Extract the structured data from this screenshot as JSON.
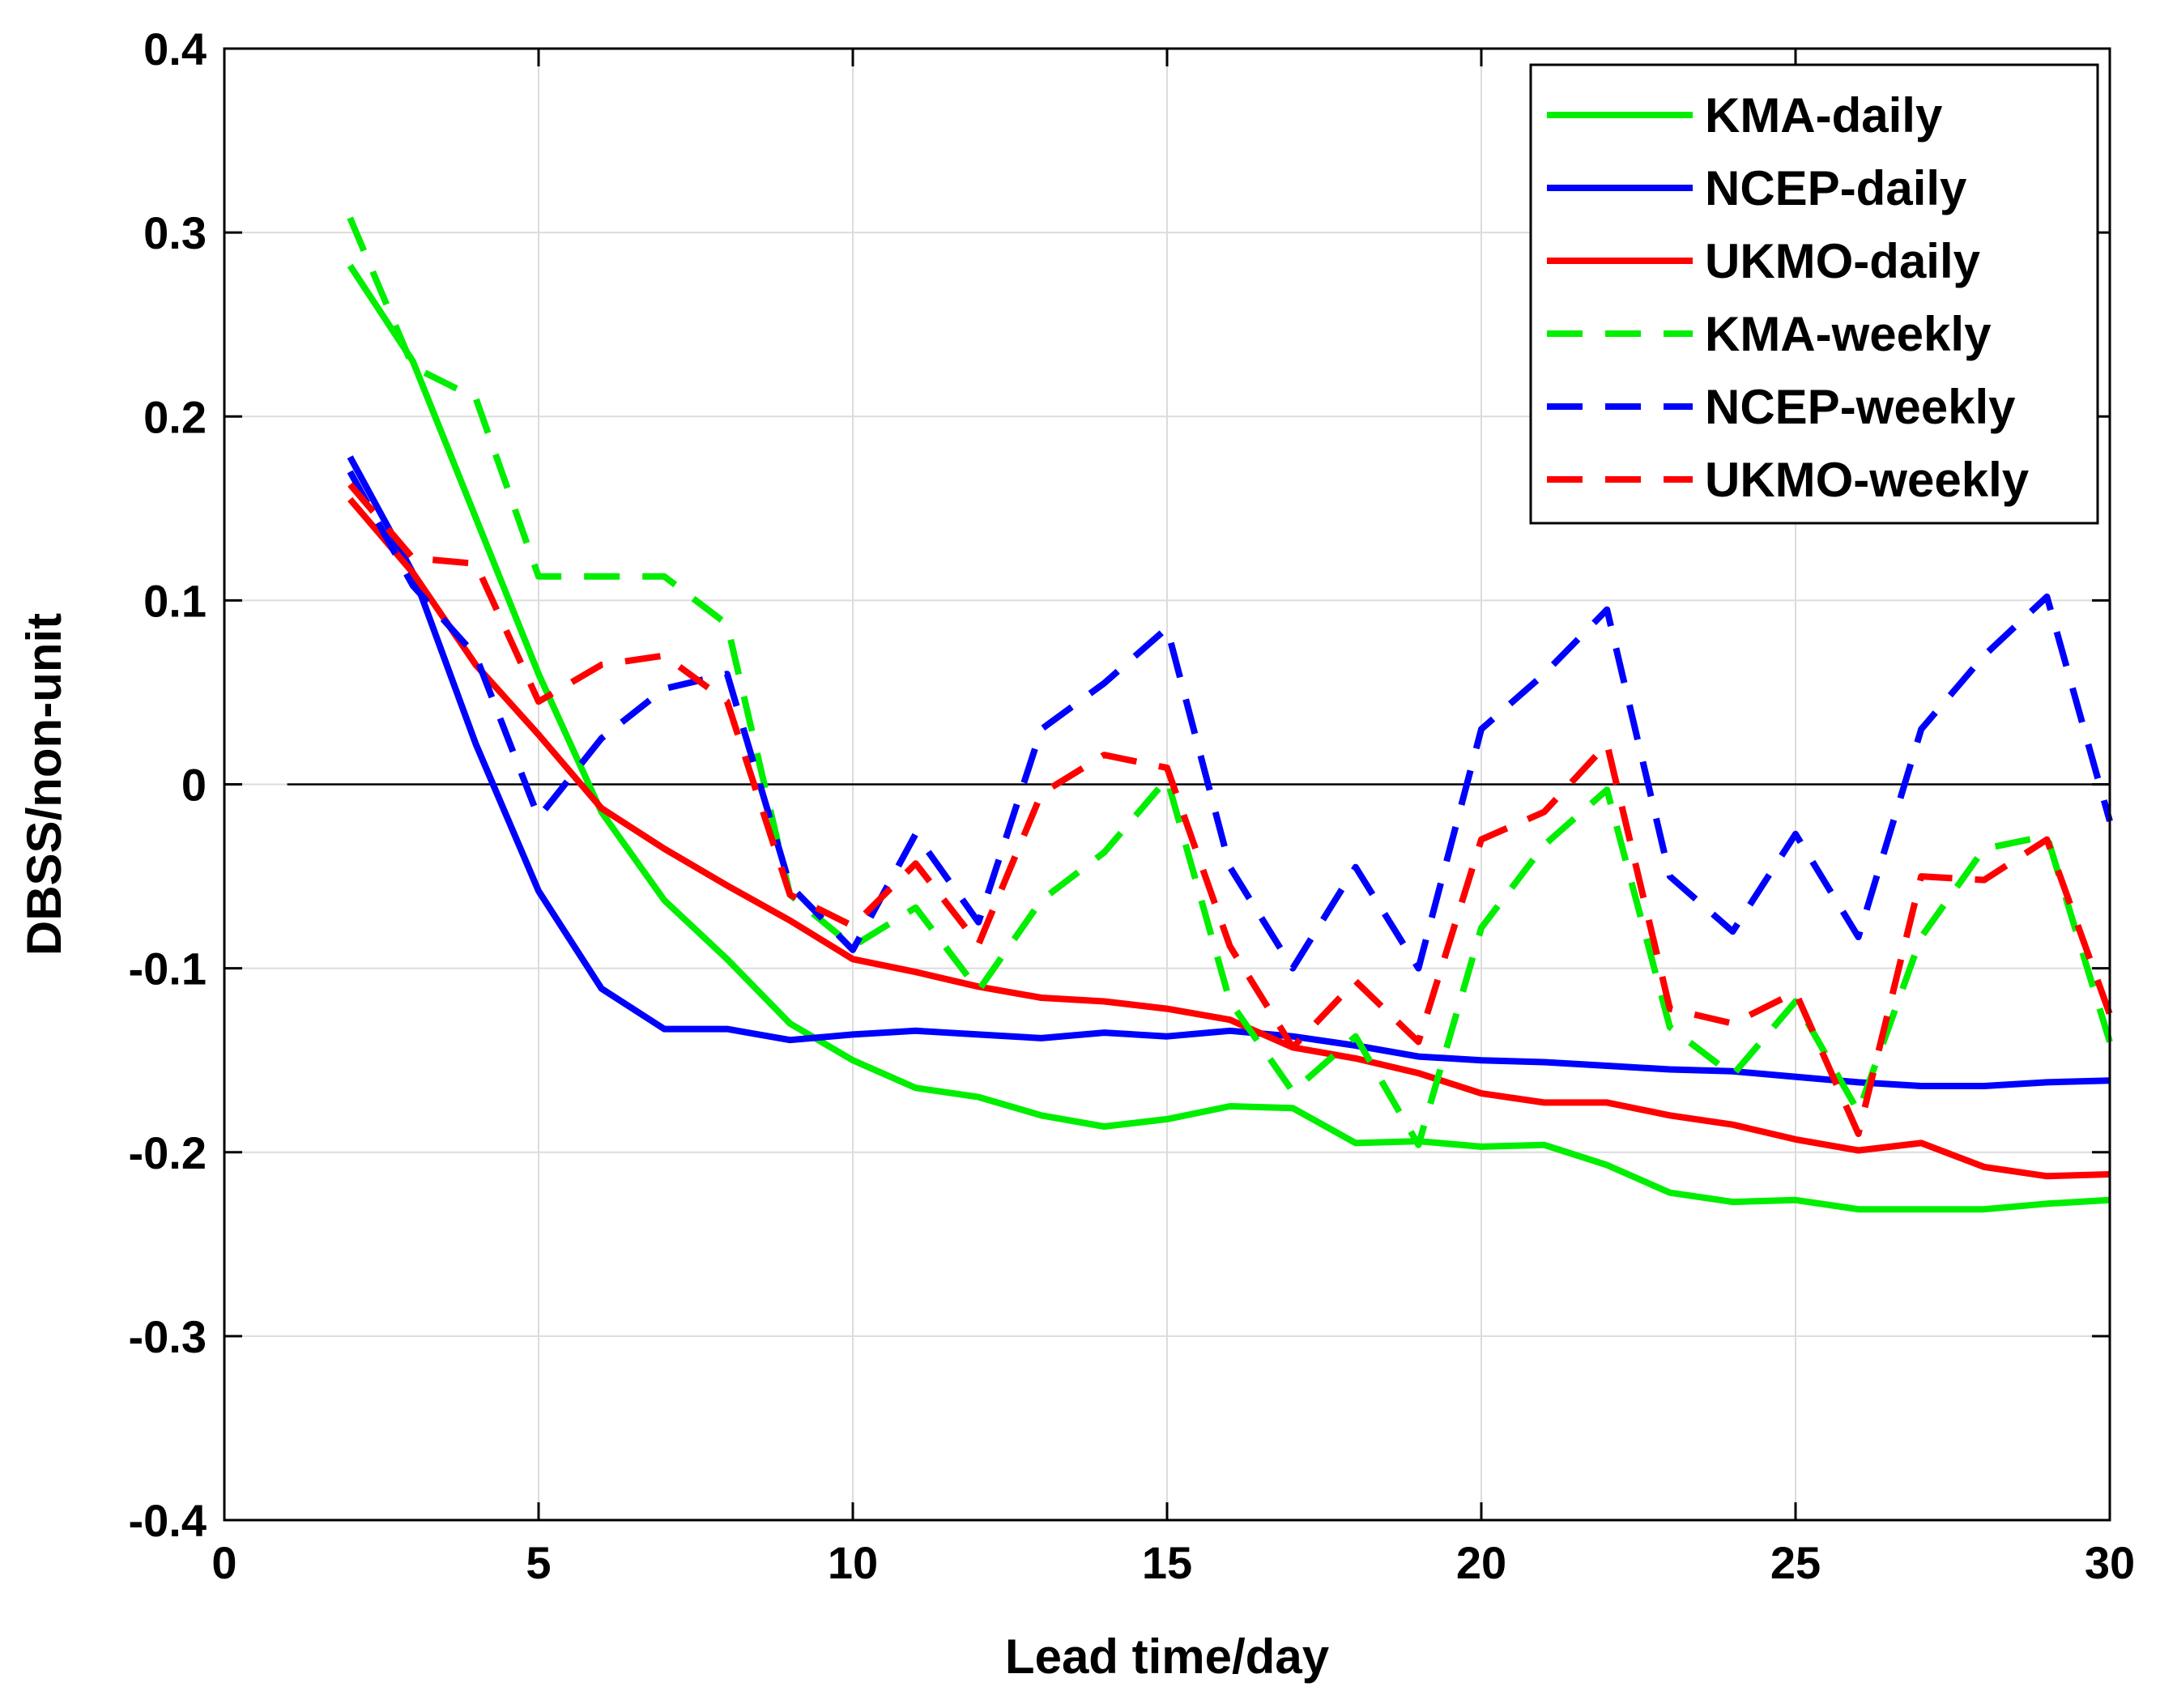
{
  "chart_data": {
    "type": "line",
    "title": "",
    "xlabel": "Lead time/day",
    "ylabel": "DBSS/non-unit",
    "xlim": [
      0,
      30
    ],
    "ylim": [
      -0.4,
      0.4
    ],
    "xticks": [
      0,
      5,
      10,
      15,
      20,
      25,
      30
    ],
    "yticks": [
      -0.4,
      -0.3,
      -0.2,
      -0.1,
      0,
      0.1,
      0.2,
      0.3,
      0.4
    ],
    "xtick_labels": [
      "0",
      "5",
      "10",
      "15",
      "20",
      "25",
      "30"
    ],
    "ytick_labels": [
      "-0.4",
      "-0.3",
      "-0.2",
      "-0.1",
      "0",
      "0.1",
      "0.2",
      "0.3",
      "0.4"
    ],
    "grid": true,
    "legend_position": "top-right",
    "reference_line": {
      "y": 0,
      "x_start": 1,
      "x_end": 30
    },
    "series": [
      {
        "name": "KMA-daily",
        "color": "#00ee00",
        "style": "solid",
        "x": [
          2,
          3,
          4,
          5,
          6,
          7,
          8,
          9,
          10,
          11,
          12,
          13,
          14,
          15,
          16,
          17,
          18,
          19,
          20,
          21,
          22,
          23,
          24,
          25,
          26,
          27,
          28,
          29,
          30
        ],
        "values": [
          0.282,
          0.23,
          0.145,
          0.06,
          -0.015,
          -0.063,
          -0.095,
          -0.13,
          -0.15,
          -0.165,
          -0.17,
          -0.18,
          -0.186,
          -0.182,
          -0.175,
          -0.176,
          -0.195,
          -0.194,
          -0.197,
          -0.196,
          -0.207,
          -0.222,
          -0.227,
          -0.226,
          -0.231,
          -0.231,
          -0.231,
          -0.228,
          -0.226
        ]
      },
      {
        "name": "NCEP-daily",
        "color": "#0000ff",
        "style": "solid",
        "x": [
          2,
          3,
          4,
          5,
          6,
          7,
          8,
          9,
          10,
          11,
          12,
          13,
          14,
          15,
          16,
          17,
          18,
          19,
          20,
          21,
          22,
          23,
          24,
          25,
          26,
          27,
          28,
          29,
          30
        ],
        "values": [
          0.178,
          0.115,
          0.022,
          -0.058,
          -0.111,
          -0.133,
          -0.133,
          -0.139,
          -0.136,
          -0.134,
          -0.136,
          -0.138,
          -0.135,
          -0.137,
          -0.134,
          -0.137,
          -0.142,
          -0.148,
          -0.15,
          -0.151,
          -0.153,
          -0.155,
          -0.156,
          -0.159,
          -0.162,
          -0.164,
          -0.164,
          -0.162,
          -0.161
        ]
      },
      {
        "name": "UKMO-daily",
        "color": "#ff0000",
        "style": "solid",
        "x": [
          2,
          3,
          4,
          5,
          6,
          7,
          8,
          9,
          10,
          11,
          12,
          13,
          14,
          15,
          16,
          17,
          18,
          19,
          20,
          21,
          22,
          23,
          24,
          25,
          26,
          27,
          28,
          29,
          30
        ],
        "values": [
          0.155,
          0.115,
          0.065,
          0.027,
          -0.013,
          -0.035,
          -0.055,
          -0.074,
          -0.095,
          -0.102,
          -0.11,
          -0.116,
          -0.118,
          -0.122,
          -0.128,
          -0.143,
          -0.149,
          -0.157,
          -0.168,
          -0.173,
          -0.173,
          -0.18,
          -0.185,
          -0.193,
          -0.199,
          -0.195,
          -0.208,
          -0.213,
          -0.212
        ]
      },
      {
        "name": "KMA-weekly",
        "color": "#00ee00",
        "style": "dashed",
        "x": [
          2,
          3,
          4,
          5,
          6,
          7,
          8,
          9,
          10,
          11,
          12,
          13,
          14,
          15,
          16,
          17,
          18,
          19,
          20,
          21,
          22,
          23,
          24,
          25,
          26,
          27,
          28,
          29,
          30
        ],
        "values": [
          0.308,
          0.227,
          0.21,
          0.113,
          0.113,
          0.113,
          0.087,
          -0.06,
          -0.088,
          -0.067,
          -0.112,
          -0.063,
          -0.037,
          0.003,
          -0.118,
          -0.167,
          -0.137,
          -0.196,
          -0.078,
          -0.033,
          -0.003,
          -0.132,
          -0.158,
          -0.118,
          -0.178,
          -0.083,
          -0.035,
          -0.028,
          -0.14
        ]
      },
      {
        "name": "NCEP-weekly",
        "color": "#0000ff",
        "style": "dashed",
        "x": [
          2,
          3,
          4,
          5,
          6,
          7,
          8,
          9,
          10,
          11,
          12,
          13,
          14,
          15,
          16,
          17,
          18,
          19,
          20,
          21,
          22,
          23,
          24,
          25,
          26,
          27,
          28,
          29,
          30
        ],
        "values": [
          0.17,
          0.108,
          0.07,
          -0.018,
          0.025,
          0.052,
          0.06,
          -0.055,
          -0.09,
          -0.027,
          -0.075,
          0.03,
          0.055,
          0.085,
          -0.045,
          -0.1,
          -0.045,
          -0.1,
          0.03,
          0.06,
          0.095,
          -0.05,
          -0.08,
          -0.027,
          -0.083,
          0.03,
          0.07,
          0.102,
          -0.02
        ]
      },
      {
        "name": "UKMO-weekly",
        "color": "#ff0000",
        "style": "dashed",
        "x": [
          2,
          3,
          4,
          5,
          6,
          7,
          8,
          9,
          10,
          11,
          12,
          13,
          14,
          15,
          16,
          17,
          18,
          19,
          20,
          21,
          22,
          23,
          24,
          25,
          26,
          27,
          28,
          29,
          30
        ],
        "values": [
          0.163,
          0.123,
          0.12,
          0.045,
          0.065,
          0.07,
          0.045,
          -0.06,
          -0.077,
          -0.043,
          -0.087,
          -0.005,
          0.016,
          0.009,
          -0.088,
          -0.143,
          -0.107,
          -0.14,
          -0.03,
          -0.015,
          0.022,
          -0.122,
          -0.13,
          -0.113,
          -0.19,
          -0.05,
          -0.052,
          -0.03,
          -0.125
        ]
      }
    ]
  }
}
